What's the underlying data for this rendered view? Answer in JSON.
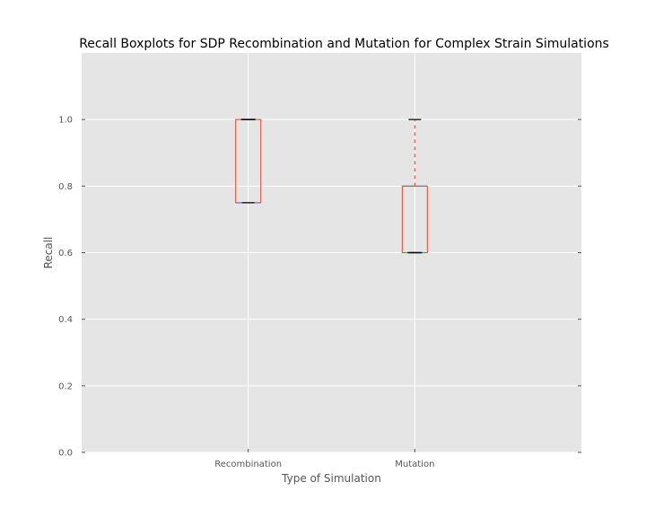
{
  "chart_data": {
    "type": "box",
    "title": "Recall Boxplots for SDP Recombination and Mutation for Complex Strain Simulations",
    "xlabel": "Type of Simulation",
    "ylabel": "Recall",
    "ylim": [
      0.0,
      1.2
    ],
    "yticks": [
      0.0,
      0.2,
      0.4,
      0.6,
      0.8,
      1.0
    ],
    "ytick_labels": [
      "0.0",
      "0.2",
      "0.4",
      "0.6",
      "0.8",
      "1.0"
    ],
    "grid": true,
    "categories": [
      "Recombination",
      "Mutation"
    ],
    "boxes": [
      {
        "category": "Recombination",
        "whisker_low": 0.75,
        "q1": 0.75,
        "median": 1.0,
        "q3": 1.0,
        "whisker_high": 1.0
      },
      {
        "category": "Mutation",
        "whisker_low": 0.6,
        "q1": 0.6,
        "median": 0.6,
        "q3": 0.8,
        "whisker_high": 1.0
      }
    ],
    "colors": {
      "plot_background": "#e5e5e5",
      "grid": "#ffffff",
      "box_edge": "#e24a33",
      "median": "#000000",
      "whisker": "#e24a33",
      "cap": "#000000",
      "box_quartile_line": "#6666cc"
    }
  }
}
